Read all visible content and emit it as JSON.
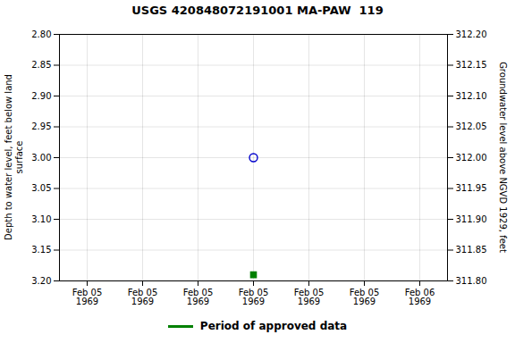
{
  "chart_data": {
    "type": "scatter",
    "title": "USGS 420848072191001 MA-PAW  119",
    "ylabel": "Depth to water level, feet below land\nsurface",
    "y2label": "Groundwater level above NGVD 1929, feet",
    "categories": [
      "Feb 05\n1969",
      "Feb 05\n1969",
      "Feb 05\n1969",
      "Feb 05\n1969",
      "Feb 05\n1969",
      "Feb 05\n1969",
      "Feb 06\n1969"
    ],
    "series": [
      {
        "color": "#0000cc",
        "marker": "open_circle",
        "values": [
          null,
          null,
          null,
          3.0,
          null,
          null,
          null
        ]
      },
      {
        "name": "Period of approved data",
        "color": "#008000",
        "marker": "square",
        "values": [
          null,
          null,
          null,
          3.19,
          null,
          null,
          null
        ]
      }
    ],
    "ylim": [
      3.2,
      2.8
    ],
    "yticks": [
      {
        "value": 2.8,
        "label": "2.80"
      },
      2.85,
      {
        "value": 2.9,
        "label": "2.90"
      },
      2.95,
      {
        "value": 3.0,
        "label": "3.00"
      },
      3.05,
      {
        "value": 3.1,
        "label": "3.10"
      },
      3.15,
      {
        "value": 3.2,
        "label": "3.20"
      }
    ],
    "y2lim": [
      311.8,
      312.2
    ],
    "y2ticks": [
      {
        "value": 312.2,
        "label": "312.20"
      },
      312.15,
      {
        "value": 312.1,
        "label": "312.10"
      },
      312.05,
      {
        "value": 312.0,
        "label": "312.00"
      },
      311.95,
      {
        "value": 311.9,
        "label": "311.90"
      },
      311.85,
      {
        "value": 311.8,
        "label": "311.80"
      }
    ],
    "grid": true,
    "legend": "bottom"
  }
}
